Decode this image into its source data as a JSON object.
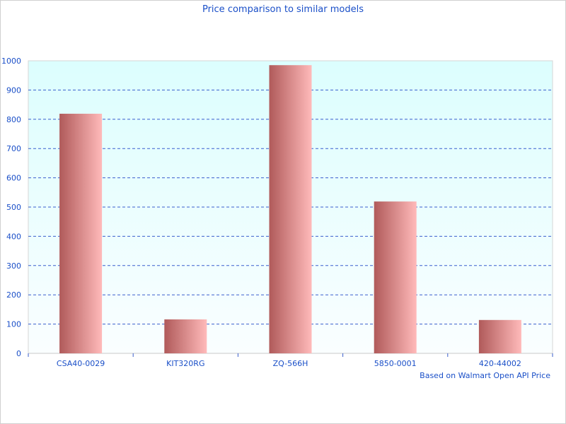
{
  "chart_data": {
    "type": "bar",
    "title": "Price comparison to similar models",
    "xlabel": "",
    "ylabel": "",
    "categories": [
      "CSA40-0029",
      "KIT320RG",
      "ZQ-566H",
      "5850-0001",
      "420-44002"
    ],
    "values": [
      819,
      116,
      985,
      519,
      114
    ],
    "ylim": [
      0,
      1000
    ],
    "yticks": [
      0,
      100,
      200,
      300,
      400,
      500,
      600,
      700,
      800,
      900,
      1000
    ],
    "grid": true,
    "legend": "none",
    "footnote": "Based on Walmart Open API Price",
    "colors": {
      "bar_dark": "#b05a5a",
      "bar_light": "#ffbaba",
      "text": "#1a4fc8",
      "grid": "#3a5fcd",
      "plot_top": "#dcfefe",
      "plot_bottom": "#fafeff"
    }
  }
}
